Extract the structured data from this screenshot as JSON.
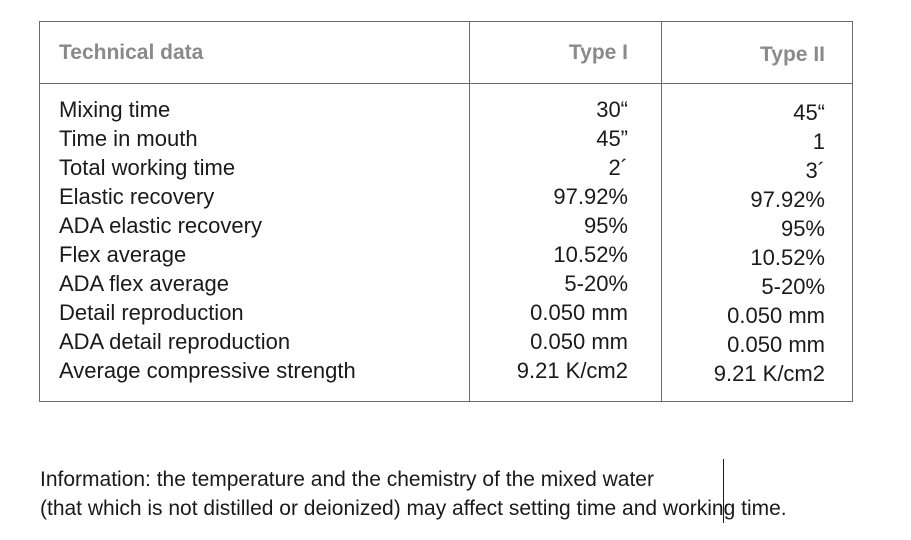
{
  "table": {
    "headers": {
      "label": "Technical data",
      "type1": "Type I",
      "type2": "Type II"
    },
    "rows": [
      {
        "label": "Mixing time",
        "type1": "30“",
        "type2": "45“"
      },
      {
        "label": "Time in mouth",
        "type1": "45”",
        "type2": "1"
      },
      {
        "label": "Total working time",
        "type1": "2´",
        "type2": "3´"
      },
      {
        "label": "Elastic recovery",
        "type1": "97.92%",
        "type2": "97.92%"
      },
      {
        "label": "ADA elastic recovery",
        "type1": "95%",
        "type2": "95%"
      },
      {
        "label": "Flex average",
        "type1": "10.52%",
        "type2": "10.52%"
      },
      {
        "label": "ADA flex average",
        "type1": "5-20%",
        "type2": "5-20%"
      },
      {
        "label": "Detail reproduction",
        "type1": "0.050 mm",
        "type2": "0.050 mm"
      },
      {
        "label": "ADA detail reproduction",
        "type1": "0.050 mm",
        "type2": "0.050 mm"
      },
      {
        "label": "Average compressive strength",
        "type1": "9.21 K/cm2",
        "type2": "9.21 K/cm2"
      }
    ]
  },
  "note": {
    "line1": "Information: the temperature and the chemistry of the mixed water",
    "line2": "(that which is not distilled or deionized) may affect setting time and working time."
  }
}
